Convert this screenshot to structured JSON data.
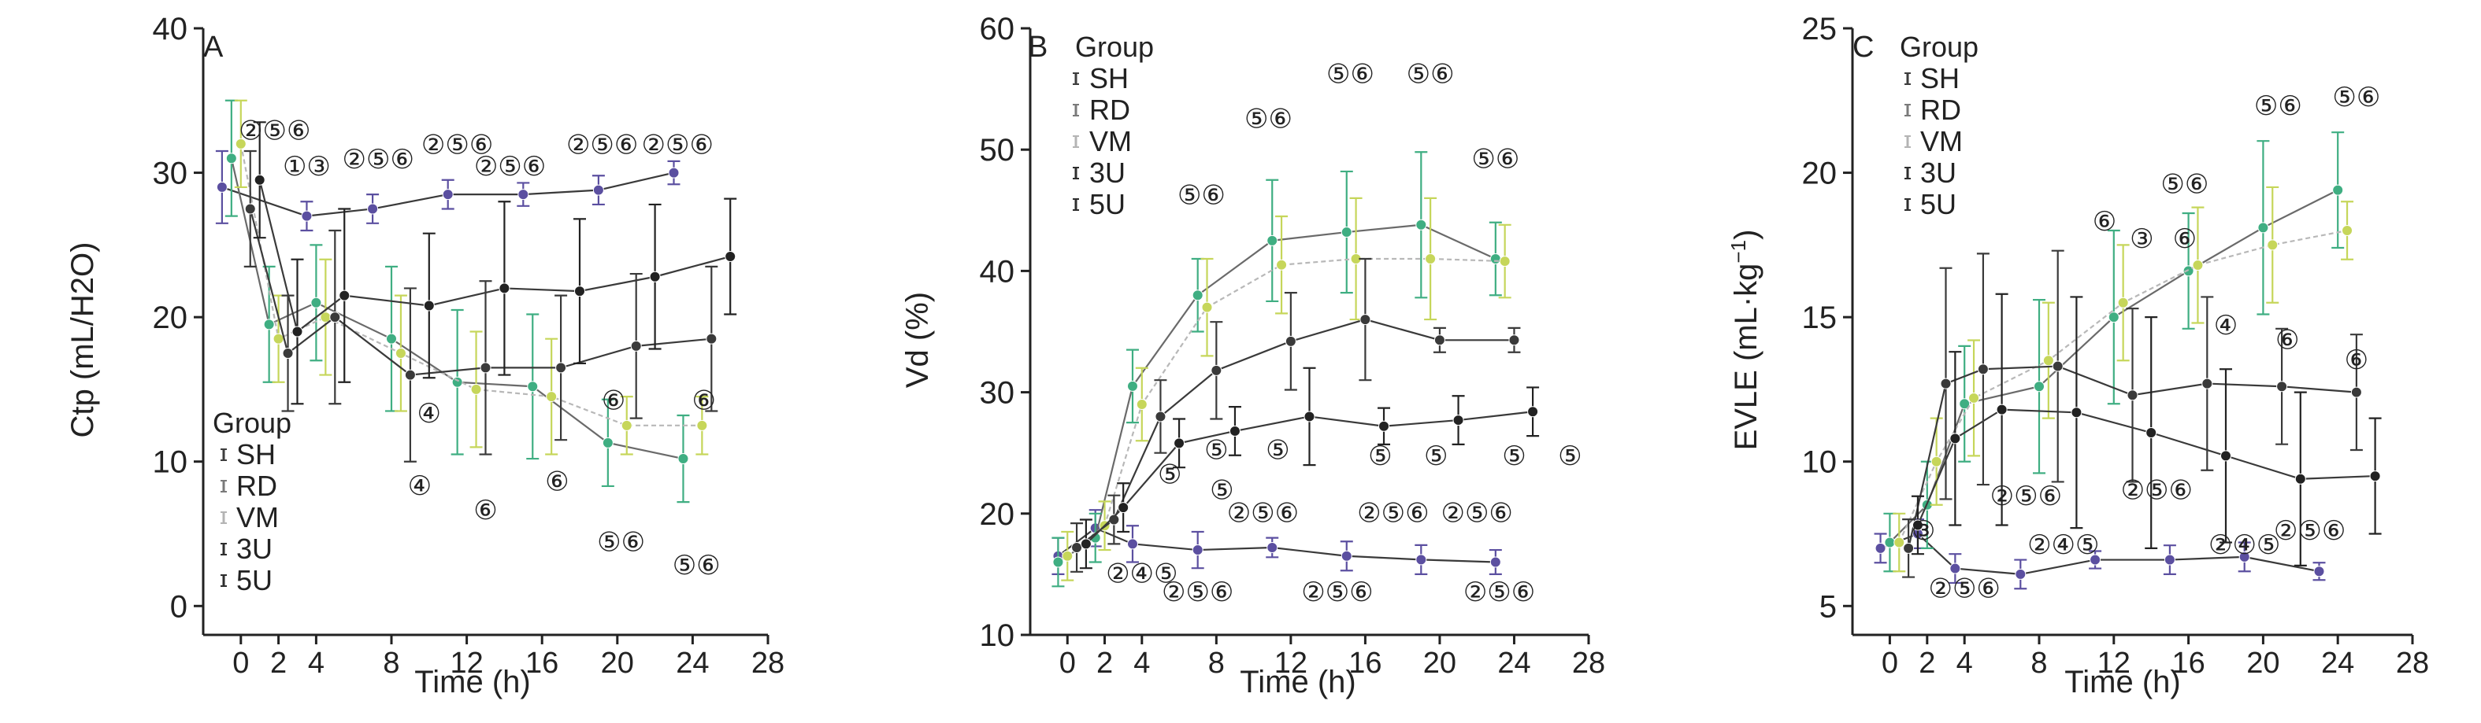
{
  "colors": {
    "SH": "#5b4fa0",
    "RD": "#3fae82",
    "VM": "#c6d65a",
    "3U": "#3a3a3a",
    "5U": "#222222",
    "SH_legend": "#3d3d3d",
    "RD_legend": "#7a7a7a",
    "VM_legend": "#b4b4b4",
    "3U_legend": "#2e2e2e",
    "5U_legend": "#2e2e2e"
  },
  "chart_data": [
    {
      "type": "line",
      "panel": "A",
      "xlabel": "Time (h)",
      "ylabel": "Ctp (mL/H2O)",
      "xlim": [
        -2,
        28
      ],
      "ylim": [
        -2,
        40
      ],
      "xticks": [
        0,
        2,
        4,
        8,
        12,
        16,
        20,
        24,
        28
      ],
      "yticks": [
        0,
        10,
        20,
        30,
        40
      ],
      "legend_title": "Group",
      "legend_entries": [
        "SH",
        "RD",
        "VM",
        "3U",
        "5U"
      ],
      "legend_position": "bottom-left",
      "series": [
        {
          "name": "SH",
          "x": [
            -1,
            3.5,
            7,
            11,
            15,
            19,
            23
          ],
          "y": [
            29,
            27,
            27.5,
            28.5,
            28.5,
            28.8,
            30
          ],
          "err": [
            2.5,
            1,
            1,
            1,
            0.8,
            1,
            0.8
          ]
        },
        {
          "name": "RD",
          "x": [
            -0.5,
            1.5,
            4,
            8,
            11.5,
            15.5,
            19.5,
            23.5
          ],
          "y": [
            31,
            19.5,
            21,
            18.5,
            15.5,
            15.2,
            11.3,
            10.2
          ],
          "err": [
            4,
            4,
            4,
            5,
            5,
            5,
            3,
            3
          ]
        },
        {
          "name": "VM",
          "x": [
            0,
            2,
            4.5,
            8.5,
            12.5,
            16.5,
            20.5,
            24.5
          ],
          "y": [
            32,
            18.5,
            20,
            17.5,
            15,
            14.5,
            12.5,
            12.5
          ],
          "err": [
            3,
            3,
            4,
            4,
            4,
            4,
            2,
            2
          ]
        },
        {
          "name": "3U",
          "x": [
            0.5,
            2.5,
            5,
            9,
            13,
            17,
            21,
            25
          ],
          "y": [
            27.5,
            17.5,
            20,
            16,
            16.5,
            16.5,
            18,
            18.5
          ],
          "err": [
            4,
            4,
            6,
            6,
            6,
            5,
            5,
            5
          ]
        },
        {
          "name": "5U",
          "x": [
            1,
            3,
            5.5,
            10,
            14,
            18,
            22,
            26
          ],
          "y": [
            29.5,
            19,
            21.5,
            20.8,
            22,
            21.8,
            22.8,
            24.2
          ],
          "err": [
            4,
            5,
            6,
            5,
            6,
            5,
            5,
            4
          ]
        }
      ],
      "annotations": [
        {
          "text": "②⑤⑥",
          "x": 1.8,
          "y": 32.3
        },
        {
          "text": "①③",
          "x": 3.5,
          "y": 29.8
        },
        {
          "text": "②⑤⑥",
          "x": 7.3,
          "y": 30.3
        },
        {
          "text": "②⑤⑥",
          "x": 11.5,
          "y": 31.3
        },
        {
          "text": "②⑤⑥",
          "x": 14.3,
          "y": 29.8
        },
        {
          "text": "②⑤⑥",
          "x": 19.2,
          "y": 31.3
        },
        {
          "text": "②⑤⑥",
          "x": 23.2,
          "y": 31.3
        },
        {
          "text": "⑥",
          "x": 19.8,
          "y": 13.6
        },
        {
          "text": "⑥",
          "x": 24.6,
          "y": 13.6
        },
        {
          "text": "④",
          "x": 10,
          "y": 12.7
        },
        {
          "text": "④",
          "x": 9.5,
          "y": 7.7
        },
        {
          "text": "⑥",
          "x": 13,
          "y": 6
        },
        {
          "text": "⑥",
          "x": 16.8,
          "y": 8
        },
        {
          "text": "⑤⑥",
          "x": 20.2,
          "y": 3.8
        },
        {
          "text": "⑤⑥",
          "x": 24.2,
          "y": 2.2
        }
      ]
    },
    {
      "type": "line",
      "panel": "B",
      "xlabel": "Time (h)",
      "ylabel": "Vd (%)",
      "xlim": [
        -2,
        28
      ],
      "ylim": [
        10,
        60
      ],
      "xticks": [
        0,
        2,
        4,
        8,
        12,
        16,
        20,
        24,
        28
      ],
      "yticks": [
        10,
        20,
        30,
        40,
        50,
        60
      ],
      "legend_title": "Group",
      "legend_entries": [
        "SH",
        "RD",
        "VM",
        "3U",
        "5U"
      ],
      "legend_position": "top-left",
      "series": [
        {
          "name": "SH",
          "x": [
            -0.5,
            1.5,
            3.5,
            7,
            11,
            15,
            19,
            23
          ],
          "y": [
            16.5,
            18.8,
            17.5,
            17,
            17.2,
            16.5,
            16.2,
            16
          ],
          "err": [
            1.5,
            1.5,
            1.5,
            1.5,
            0.8,
            1.2,
            1.2,
            1
          ]
        },
        {
          "name": "RD",
          "x": [
            -0.5,
            1.5,
            3.5,
            7,
            11,
            15,
            19,
            23
          ],
          "y": [
            16,
            18,
            30.5,
            38,
            42.5,
            43.2,
            43.8,
            41
          ],
          "err": [
            2,
            2,
            3,
            3,
            5,
            5,
            6,
            3
          ]
        },
        {
          "name": "VM",
          "x": [
            0,
            2,
            4,
            7.5,
            11.5,
            15.5,
            19.5,
            23.5
          ],
          "y": [
            16.5,
            19,
            29,
            37,
            40.5,
            41,
            41,
            40.8
          ],
          "err": [
            2,
            2,
            3,
            4,
            4,
            5,
            5,
            3
          ]
        },
        {
          "name": "3U",
          "x": [
            0.5,
            2.5,
            5,
            8,
            12,
            16,
            20,
            24
          ],
          "y": [
            17.2,
            19.5,
            28,
            31.8,
            34.2,
            36,
            34.3,
            34.3
          ],
          "err": [
            2,
            2,
            3,
            4,
            4,
            5,
            1,
            1
          ]
        },
        {
          "name": "5U",
          "x": [
            1,
            3,
            6,
            9,
            13,
            17,
            21,
            25
          ],
          "y": [
            17.5,
            20.5,
            25.8,
            26.8,
            28,
            27.2,
            27.7,
            28.4
          ],
          "err": [
            2,
            2,
            2,
            2,
            4,
            1.5,
            2,
            2
          ]
        }
      ],
      "annotations": [
        {
          "text": "⑤⑥",
          "x": 7.2,
          "y": 45.5
        },
        {
          "text": "⑤⑥",
          "x": 10.8,
          "y": 51.8
        },
        {
          "text": "⑤⑥",
          "x": 15.2,
          "y": 55.5
        },
        {
          "text": "⑤⑥",
          "x": 19.5,
          "y": 55.5
        },
        {
          "text": "⑤⑥",
          "x": 23,
          "y": 48.5
        },
        {
          "text": "⑤",
          "x": 5.5,
          "y": 22.5
        },
        {
          "text": "⑤",
          "x": 8.3,
          "y": 21.2
        },
        {
          "text": "⑤",
          "x": 8,
          "y": 24.5
        },
        {
          "text": "⑤",
          "x": 11.3,
          "y": 24.5
        },
        {
          "text": "⑤",
          "x": 16.8,
          "y": 24
        },
        {
          "text": "⑤",
          "x": 19.8,
          "y": 24
        },
        {
          "text": "⑤",
          "x": 24,
          "y": 24
        },
        {
          "text": "⑤",
          "x": 27,
          "y": 24
        },
        {
          "text": "②⑤⑥",
          "x": 10.5,
          "y": 19.3
        },
        {
          "text": "②⑤⑥",
          "x": 17.5,
          "y": 19.3
        },
        {
          "text": "②⑤⑥",
          "x": 22,
          "y": 19.3
        },
        {
          "text": "②④⑤",
          "x": 4,
          "y": 14.3
        },
        {
          "text": "②⑤⑥",
          "x": 7,
          "y": 12.8
        },
        {
          "text": "②⑤⑥",
          "x": 14.5,
          "y": 12.8
        },
        {
          "text": "②⑤⑥",
          "x": 23.2,
          "y": 12.8
        }
      ]
    },
    {
      "type": "line",
      "panel": "C",
      "xlabel": "Time (h)",
      "ylabel": "EVLE (mL·kg⁻¹)",
      "xlim": [
        -2,
        28
      ],
      "ylim": [
        4,
        25
      ],
      "xticks": [
        0,
        2,
        4,
        8,
        12,
        16,
        20,
        24,
        28
      ],
      "yticks": [
        5,
        10,
        15,
        20,
        25
      ],
      "legend_title": "Group",
      "legend_entries": [
        "SH",
        "RD",
        "VM",
        "3U",
        "5U"
      ],
      "legend_position": "top-left",
      "series": [
        {
          "name": "SH",
          "x": [
            -0.5,
            1.5,
            3.5,
            7,
            11,
            15,
            19,
            23
          ],
          "y": [
            7,
            7.5,
            6.3,
            6.1,
            6.6,
            6.6,
            6.7,
            6.2
          ],
          "err": [
            0.5,
            0.5,
            0.5,
            0.5,
            0.3,
            0.5,
            0.5,
            0.3
          ]
        },
        {
          "name": "RD",
          "x": [
            0,
            2,
            4,
            8,
            12,
            16,
            20,
            24
          ],
          "y": [
            7.2,
            8.5,
            12,
            12.6,
            15,
            16.6,
            18.1,
            19.4
          ],
          "err": [
            1,
            1.5,
            2,
            3,
            3,
            2,
            3,
            2
          ]
        },
        {
          "name": "VM",
          "x": [
            0.5,
            2.5,
            4.5,
            8.5,
            12.5,
            16.5,
            20.5,
            24.5
          ],
          "y": [
            7.2,
            10,
            12.2,
            13.5,
            15.5,
            16.8,
            17.5,
            18
          ],
          "err": [
            1,
            1.5,
            2,
            2,
            2,
            2,
            2,
            1
          ]
        },
        {
          "name": "3U",
          "x": [
            1,
            3,
            5,
            9,
            13,
            17,
            21,
            25
          ],
          "y": [
            7,
            12.7,
            13.2,
            13.3,
            12.3,
            12.7,
            12.6,
            12.4
          ],
          "err": [
            1,
            4,
            4,
            4,
            3,
            3,
            2,
            2
          ]
        },
        {
          "name": "5U",
          "x": [
            1.5,
            3.5,
            6,
            10,
            14,
            18,
            22,
            26
          ],
          "y": [
            7.8,
            10.8,
            11.8,
            11.7,
            11,
            10.2,
            9.4,
            9.5
          ],
          "err": [
            1,
            3,
            4,
            4,
            4,
            3,
            3,
            2
          ]
        }
      ],
      "annotations": [
        {
          "text": "③",
          "x": 1.8,
          "y": 7.3
        },
        {
          "text": "②⑤⑥",
          "x": 7.3,
          "y": 8.5
        },
        {
          "text": "②⑤⑥",
          "x": 14.3,
          "y": 8.7
        },
        {
          "text": "②⑤⑥",
          "x": 22.5,
          "y": 7.3
        },
        {
          "text": "②⑤⑥",
          "x": 4,
          "y": 5.3
        },
        {
          "text": "②④⑤",
          "x": 9.3,
          "y": 6.8
        },
        {
          "text": "②④⑤",
          "x": 19,
          "y": 6.8
        },
        {
          "text": "⑥",
          "x": 11.5,
          "y": 18
        },
        {
          "text": "③",
          "x": 13.5,
          "y": 17.4
        },
        {
          "text": "⑥",
          "x": 15.8,
          "y": 17.4
        },
        {
          "text": "④",
          "x": 18,
          "y": 14.4
        },
        {
          "text": "⑥",
          "x": 21.3,
          "y": 13.9
        },
        {
          "text": "⑥",
          "x": 25,
          "y": 13.2
        },
        {
          "text": "⑤⑥",
          "x": 15.8,
          "y": 19.3
        },
        {
          "text": "⑤⑥",
          "x": 20.8,
          "y": 22
        },
        {
          "text": "⑤⑥",
          "x": 25,
          "y": 22.3
        }
      ]
    }
  ]
}
